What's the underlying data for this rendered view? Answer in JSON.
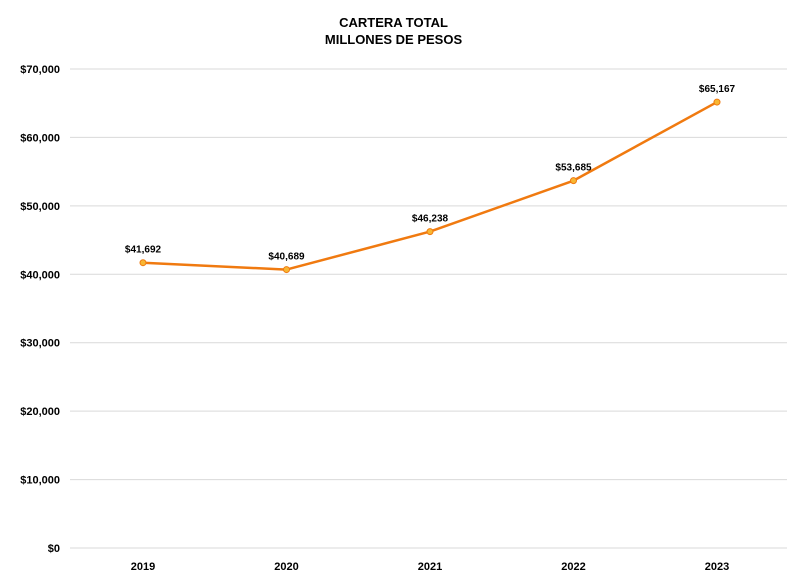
{
  "chart_data": {
    "type": "line",
    "title": "CARTERA TOTAL",
    "subtitle": "MILLONES DE PESOS",
    "xlabel": "",
    "ylabel": "",
    "categories": [
      "2019",
      "2020",
      "2021",
      "2022",
      "2023"
    ],
    "series": [
      {
        "values": [
          41692,
          40689,
          46238,
          53685,
          65167
        ],
        "data_labels": [
          "$41,692",
          "$40,689",
          "$46,238",
          "$53,685",
          "$65,167"
        ],
        "color": "#F07A10",
        "marker_fill": "#F7B733"
      }
    ],
    "ylim": [
      0,
      70000
    ],
    "yticks": [
      0,
      10000,
      20000,
      30000,
      40000,
      50000,
      60000,
      70000
    ],
    "ytick_labels": [
      "$0",
      "$10,000",
      "$20,000",
      "$30,000",
      "$40,000",
      "$50,000",
      "$60,000",
      "$70,000"
    ],
    "grid": true,
    "grid_color": "#D9D9D9",
    "legend": "none"
  }
}
